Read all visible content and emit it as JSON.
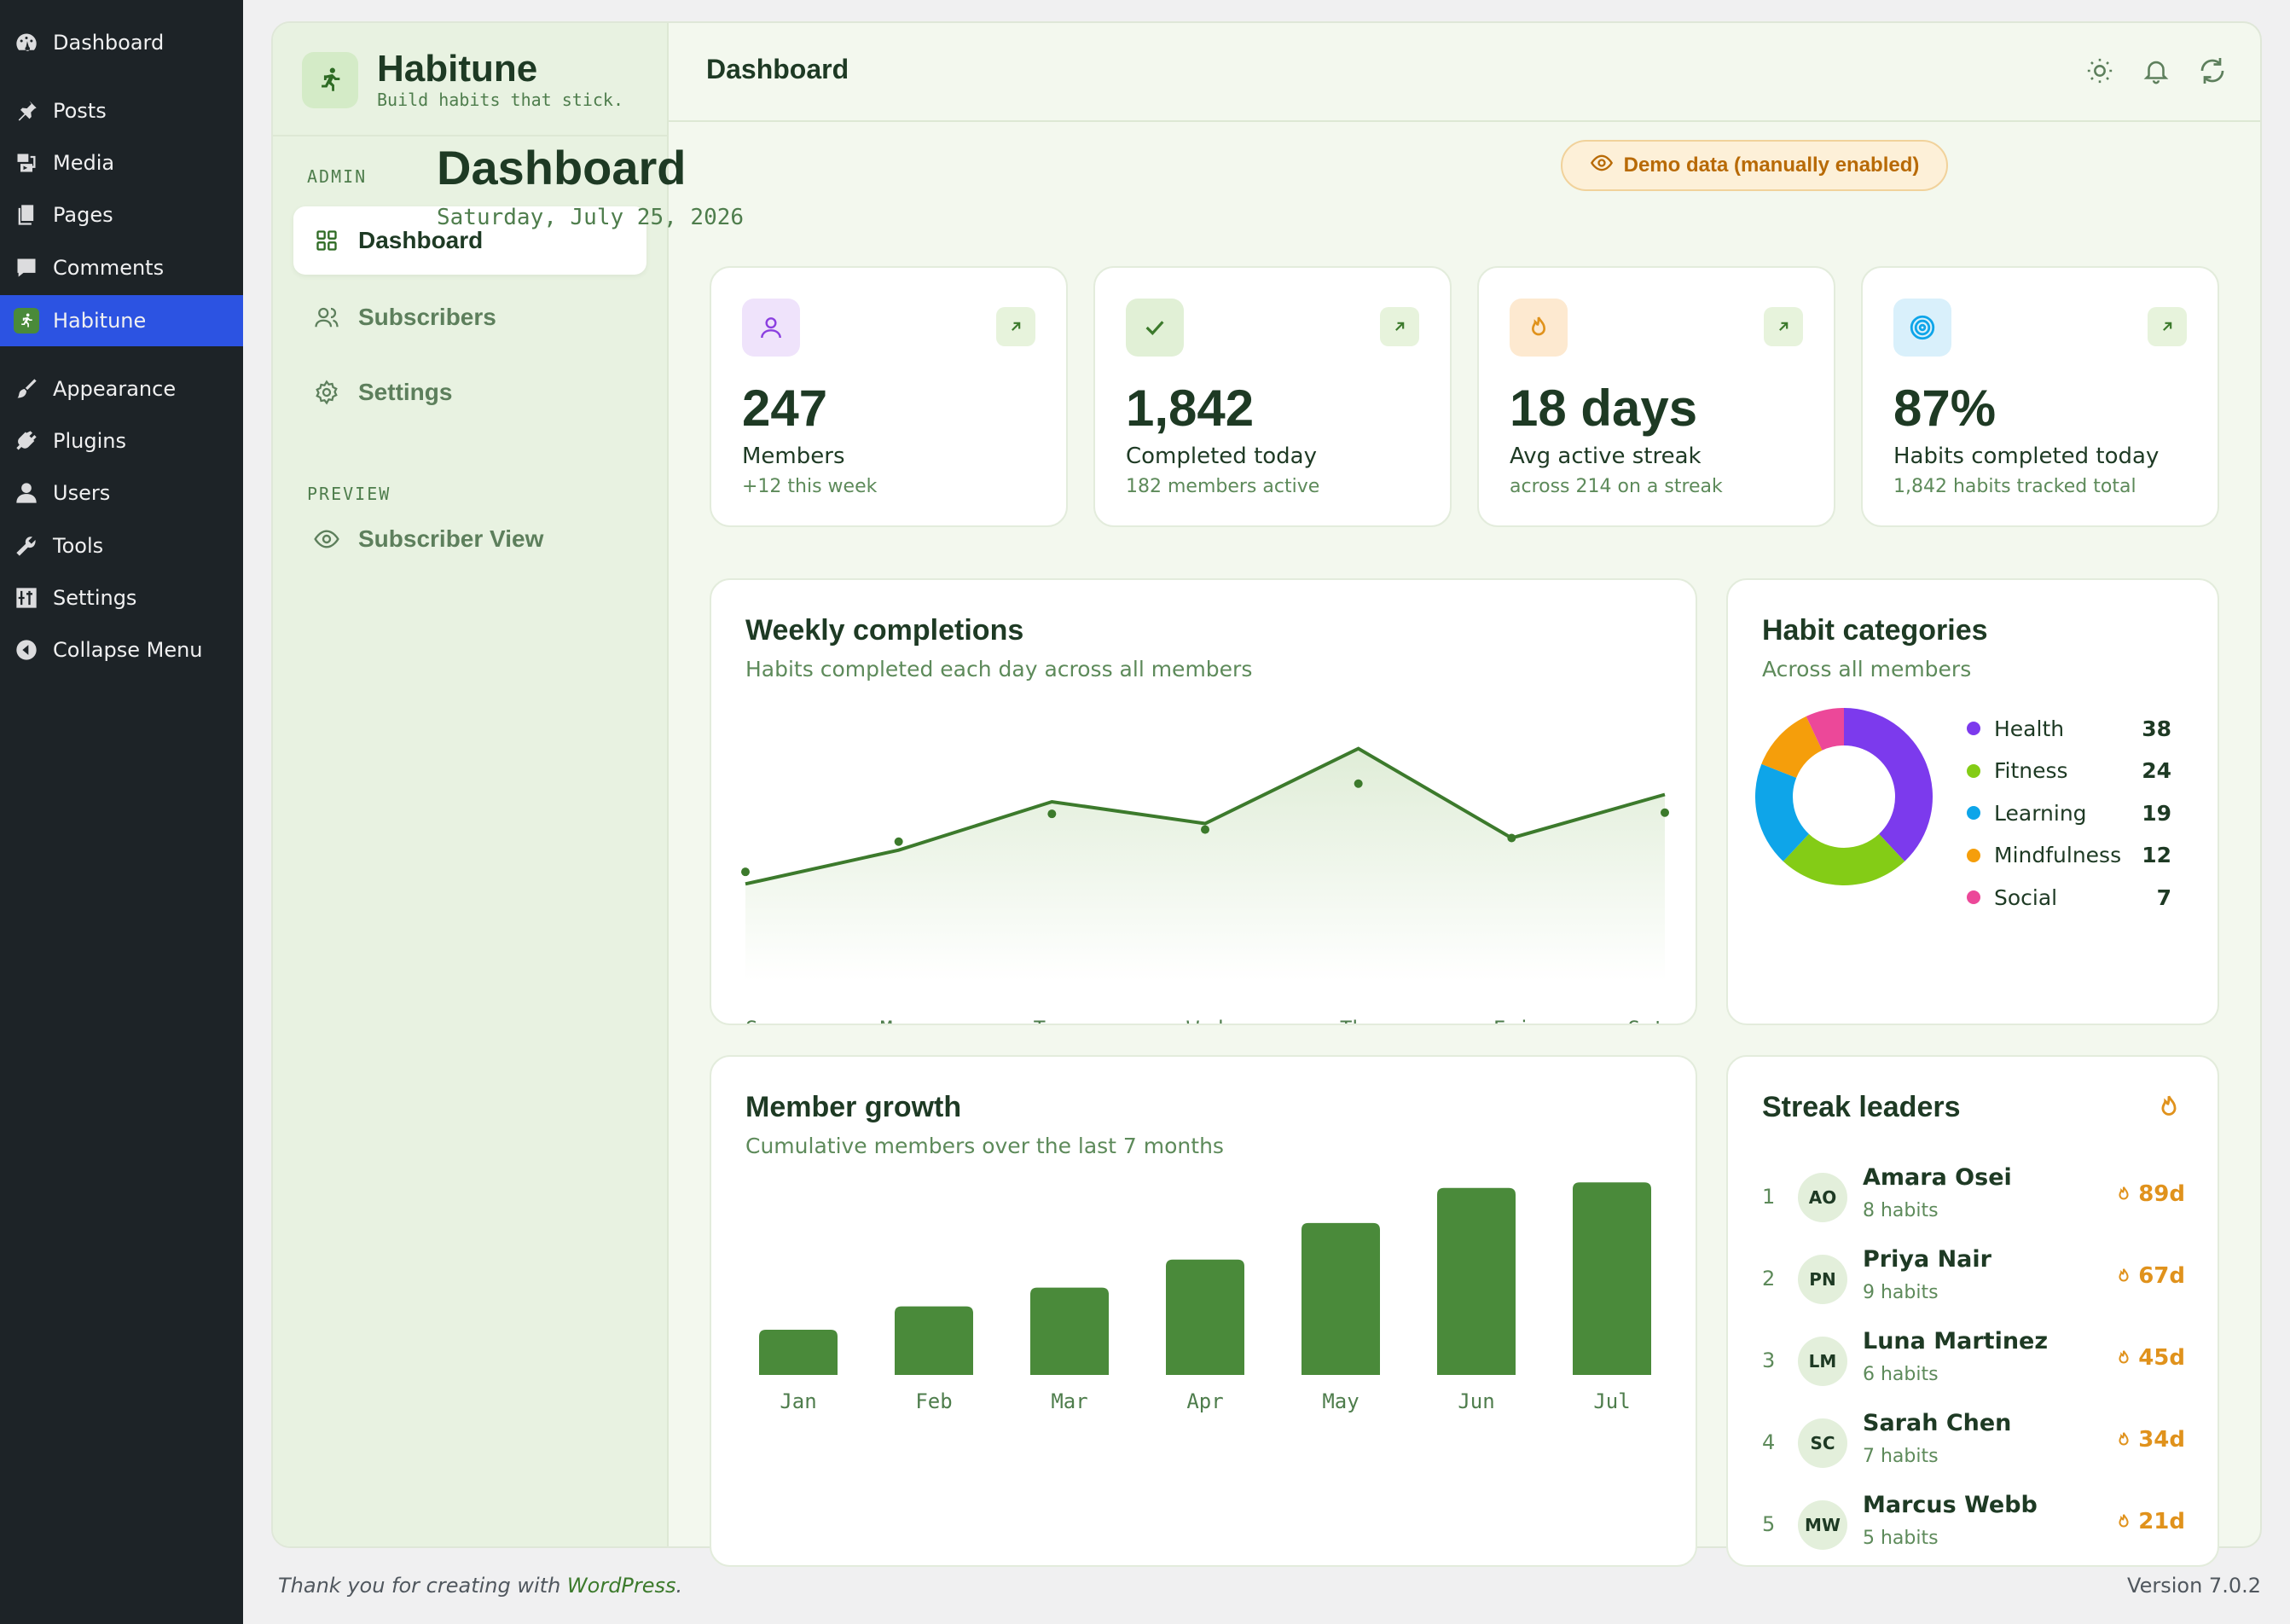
{
  "wp_menu": {
    "items": [
      {
        "label": "Dashboard",
        "icon": "dashboard-icon"
      },
      {
        "label": "Posts",
        "icon": "pin-icon"
      },
      {
        "label": "Media",
        "icon": "media-icon"
      },
      {
        "label": "Pages",
        "icon": "pages-icon"
      },
      {
        "label": "Comments",
        "icon": "comment-icon"
      },
      {
        "label": "Habitune",
        "icon": "runner-icon"
      },
      {
        "label": "Appearance",
        "icon": "brush-icon"
      },
      {
        "label": "Plugins",
        "icon": "plug-icon"
      },
      {
        "label": "Users",
        "icon": "user-icon"
      },
      {
        "label": "Tools",
        "icon": "wrench-icon"
      },
      {
        "label": "Settings",
        "icon": "sliders-icon"
      },
      {
        "label": "Collapse Menu",
        "icon": "collapse-icon"
      }
    ]
  },
  "brand": {
    "name": "Habitune",
    "tagline": "Build habits that stick."
  },
  "sidebar": {
    "admin_label": "ADMIN",
    "preview_label": "PREVIEW",
    "items": [
      {
        "label": "Dashboard",
        "icon": "grid-icon"
      },
      {
        "label": "Subscribers",
        "icon": "users-icon"
      },
      {
        "label": "Settings",
        "icon": "gear-icon"
      },
      {
        "label": "Subscriber View",
        "icon": "eye-icon"
      }
    ]
  },
  "header": {
    "title": "Dashboard",
    "icons": [
      "sun-icon",
      "bell-icon",
      "refresh-icon"
    ]
  },
  "page": {
    "title": "Dashboard",
    "date": "Saturday, July 25, 2026",
    "badge": "Demo data (manually enabled)"
  },
  "stats": [
    {
      "value": "247",
      "label": "Members",
      "sub": "+12 this week",
      "icon": "person-icon",
      "color": "#8b3fe0"
    },
    {
      "value": "1,842",
      "label": "Completed today",
      "sub": "182 members active",
      "icon": "check-icon",
      "color": "#3c7a2c"
    },
    {
      "value": "18 days",
      "label": "Avg active streak",
      "sub": "across 214 on a streak",
      "icon": "flame-icon",
      "color": "#e0921c"
    },
    {
      "value": "87%",
      "label": "Habits completed today",
      "sub": "1,842 habits tracked total",
      "icon": "target-icon",
      "color": "#0ea5e9"
    }
  ],
  "weekly": {
    "title": "Weekly completions",
    "subtitle": "Habits completed each day across all members"
  },
  "growth": {
    "title": "Member growth",
    "subtitle": "Cumulative members over the last 7 months"
  },
  "categories": {
    "title": "Habit categories",
    "subtitle": "Across all members"
  },
  "leaders": {
    "title": "Streak leaders",
    "items": [
      {
        "rank": "1",
        "initials": "AO",
        "name": "Amara Osei",
        "habits": "8 habits",
        "streak": "89d"
      },
      {
        "rank": "2",
        "initials": "PN",
        "name": "Priya Nair",
        "habits": "9 habits",
        "streak": "67d"
      },
      {
        "rank": "3",
        "initials": "LM",
        "name": "Luna Martinez",
        "habits": "6 habits",
        "streak": "45d"
      },
      {
        "rank": "4",
        "initials": "SC",
        "name": "Sarah Chen",
        "habits": "7 habits",
        "streak": "34d"
      },
      {
        "rank": "5",
        "initials": "MW",
        "name": "Marcus Webb",
        "habits": "5 habits",
        "streak": "21d"
      }
    ]
  },
  "footer": {
    "thanks": "Thank you for creating with ",
    "link": "WordPress",
    "period": ".",
    "version": "Version 7.0.2"
  },
  "chart_data": [
    {
      "type": "line",
      "categories": [
        "Sun",
        "Mon",
        "Tue",
        "Wed",
        "Thu",
        "Fri",
        "Sat"
      ],
      "series": [
        {
          "values": [
            172,
            200,
            240,
            222,
            284,
            210,
            246
          ]
        }
      ],
      "points": [
        182,
        207,
        230,
        217,
        255,
        210,
        231
      ],
      "ylim": [
        0,
        300
      ],
      "grid": false,
      "color": "#3c7a2c"
    },
    {
      "type": "bar",
      "categories": [
        "Jan",
        "Feb",
        "Mar",
        "Apr",
        "May",
        "Jun",
        "Jul"
      ],
      "values": [
        58,
        88,
        112,
        148,
        195,
        240,
        247
      ],
      "ylim": [
        0,
        255
      ],
      "color": "#4a8a3a"
    },
    {
      "type": "pie",
      "donut": true,
      "categories": [
        "Health",
        "Fitness",
        "Learning",
        "Mindfulness",
        "Social"
      ],
      "values": [
        38,
        24,
        19,
        12,
        7
      ],
      "colors": [
        "#7c3aed",
        "#84cc16",
        "#0ea5e9",
        "#f59e0b",
        "#ec4899"
      ]
    }
  ]
}
